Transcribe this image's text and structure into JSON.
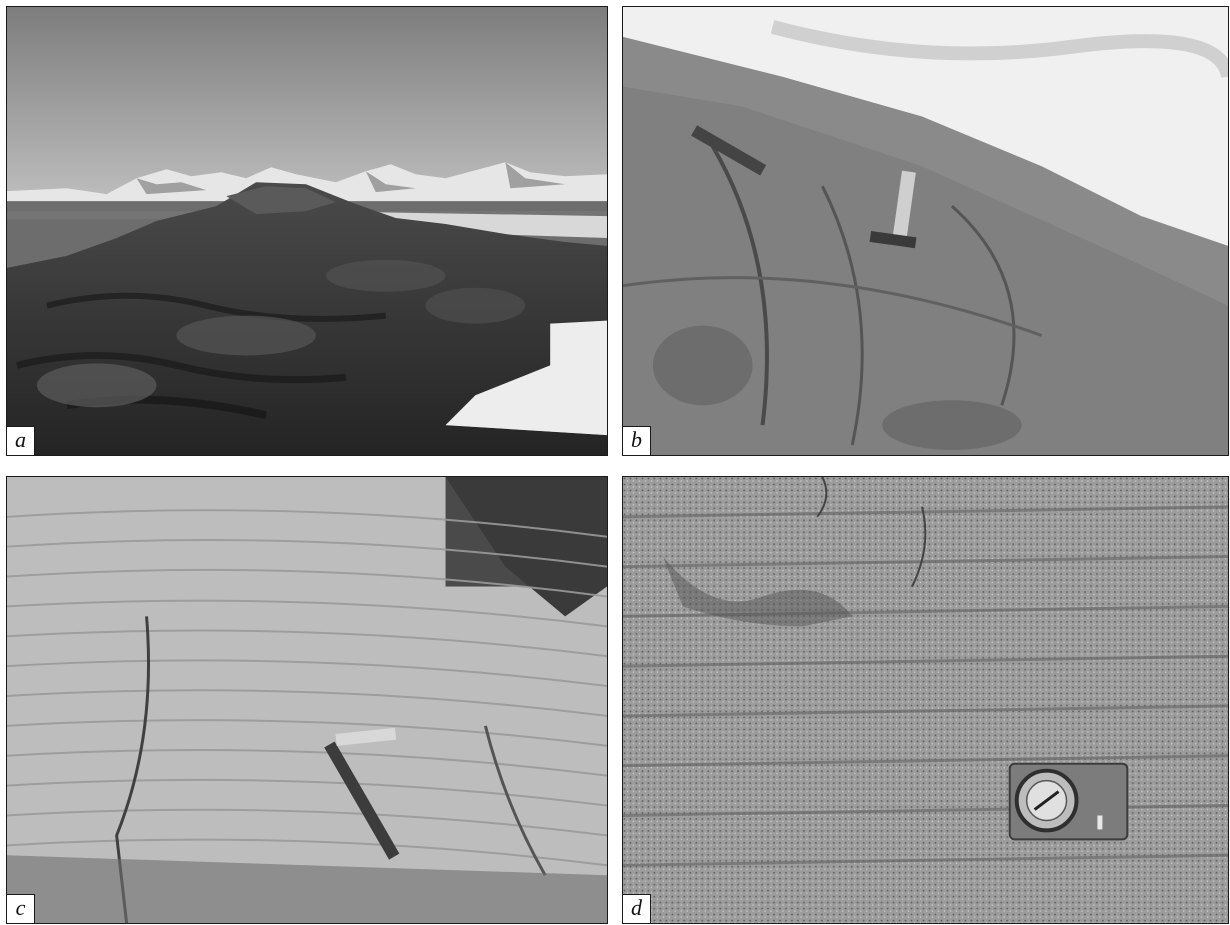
{
  "figure": {
    "panels": [
      {
        "id": "a",
        "label": "a",
        "subject": "mountains-and-rock-outcrop"
      },
      {
        "id": "b",
        "label": "b",
        "subject": "rock-surface-with-hammer"
      },
      {
        "id": "c",
        "label": "c",
        "subject": "banded-rock-with-hammer"
      },
      {
        "id": "d",
        "label": "d",
        "subject": "banded-rock-with-compass"
      }
    ]
  }
}
